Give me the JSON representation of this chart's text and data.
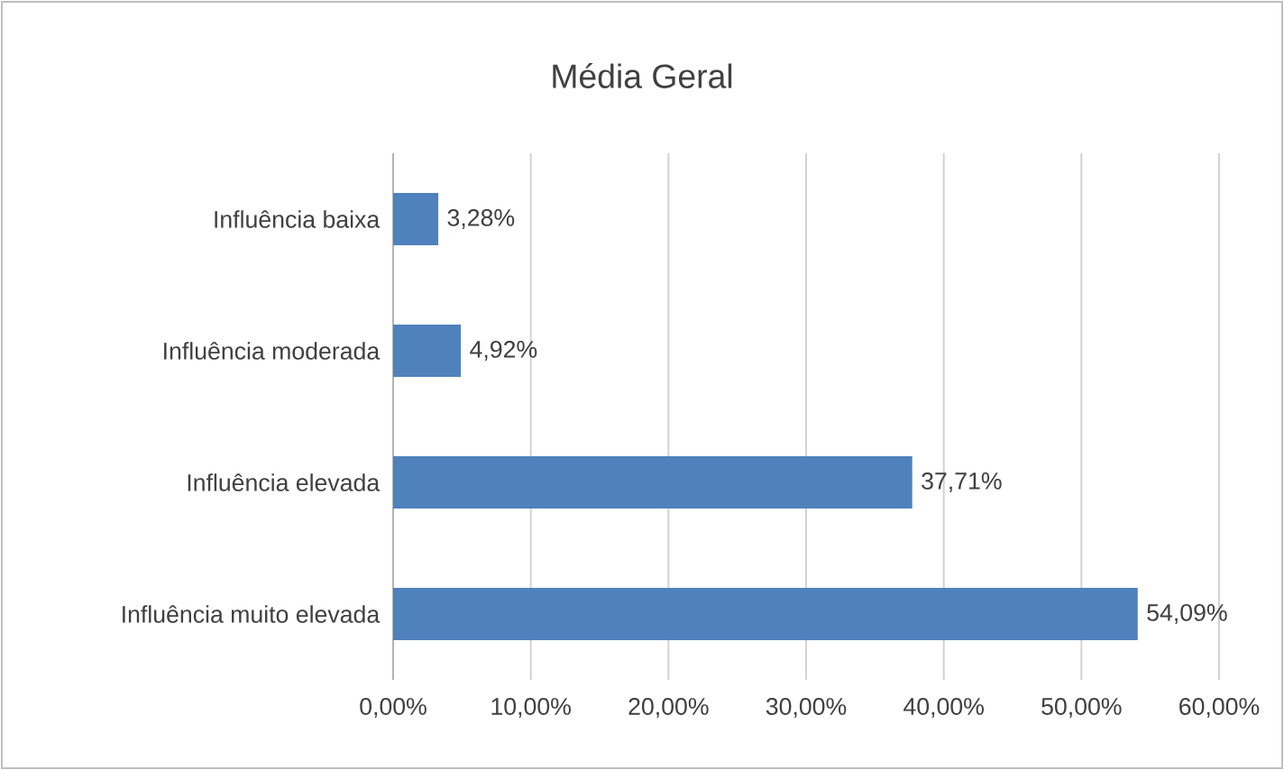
{
  "chart_data": {
    "type": "bar",
    "orientation": "horizontal",
    "title": "Média Geral",
    "categories": [
      "Influência baixa",
      "Influência moderada",
      "Influência elevada",
      "Influência muito elevada"
    ],
    "values": [
      3.28,
      4.92,
      37.71,
      54.09
    ],
    "value_labels": [
      "3,28%",
      "4,92%",
      "37,71%",
      "54,09%"
    ],
    "color": "#4f81bd",
    "xlim": [
      0,
      60
    ],
    "xticks": [
      {
        "value": 0,
        "label": "0,00%"
      },
      {
        "value": 10,
        "label": "10,00%"
      },
      {
        "value": 20,
        "label": "20,00%"
      },
      {
        "value": 30,
        "label": "30,00%"
      },
      {
        "value": 40,
        "label": "40,00%"
      },
      {
        "value": 50,
        "label": "50,00%"
      },
      {
        "value": 60,
        "label": "60,00%"
      }
    ],
    "grid": "x"
  }
}
